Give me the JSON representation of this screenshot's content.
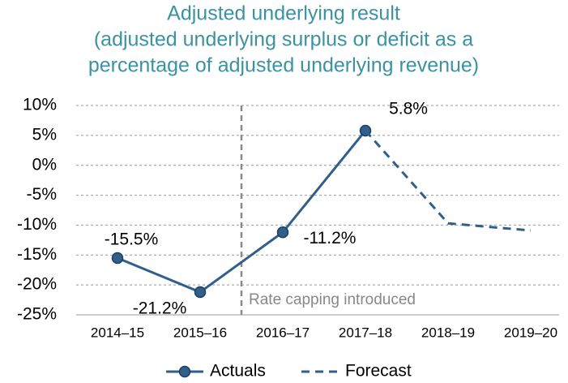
{
  "chart_data": {
    "type": "line",
    "title": "Adjusted underlying result",
    "subtitle": [
      "(adjusted underlying surplus or deficit as a",
      "percentage of adjusted underlying revenue)"
    ],
    "annotation": "Rate capping introduced",
    "categories": [
      "2014–15",
      "2015–16",
      "2016–17",
      "2017–18",
      "2018–19",
      "2019–20"
    ],
    "series": [
      {
        "name": "Actuals",
        "color": "#2f5f8a",
        "style": "solid",
        "markers": true,
        "values": [
          -15.5,
          -21.2,
          -11.2,
          5.8,
          null,
          null
        ],
        "value_labels": [
          "-15.5%",
          "-21.2%",
          "-11.2%",
          "5.8%",
          null,
          null
        ]
      },
      {
        "name": "Forecast",
        "color": "#2f5f8a",
        "style": "dashed",
        "markers": false,
        "values": [
          null,
          null,
          null,
          5.8,
          -9.7,
          -10.9
        ]
      }
    ],
    "ylim": [
      -25,
      10
    ],
    "yticks": [
      {
        "value": -25,
        "label": "-25%"
      },
      {
        "value": -20,
        "label": "-20%"
      },
      {
        "value": -15,
        "label": "-15%"
      },
      {
        "value": -10,
        "label": "-10%"
      },
      {
        "value": -5,
        "label": "-5%"
      },
      {
        "value": 0,
        "label": "0%"
      },
      {
        "value": 5,
        "label": "5%"
      },
      {
        "value": 10,
        "label": "10%"
      }
    ],
    "grid": true,
    "legend": "bottom"
  }
}
